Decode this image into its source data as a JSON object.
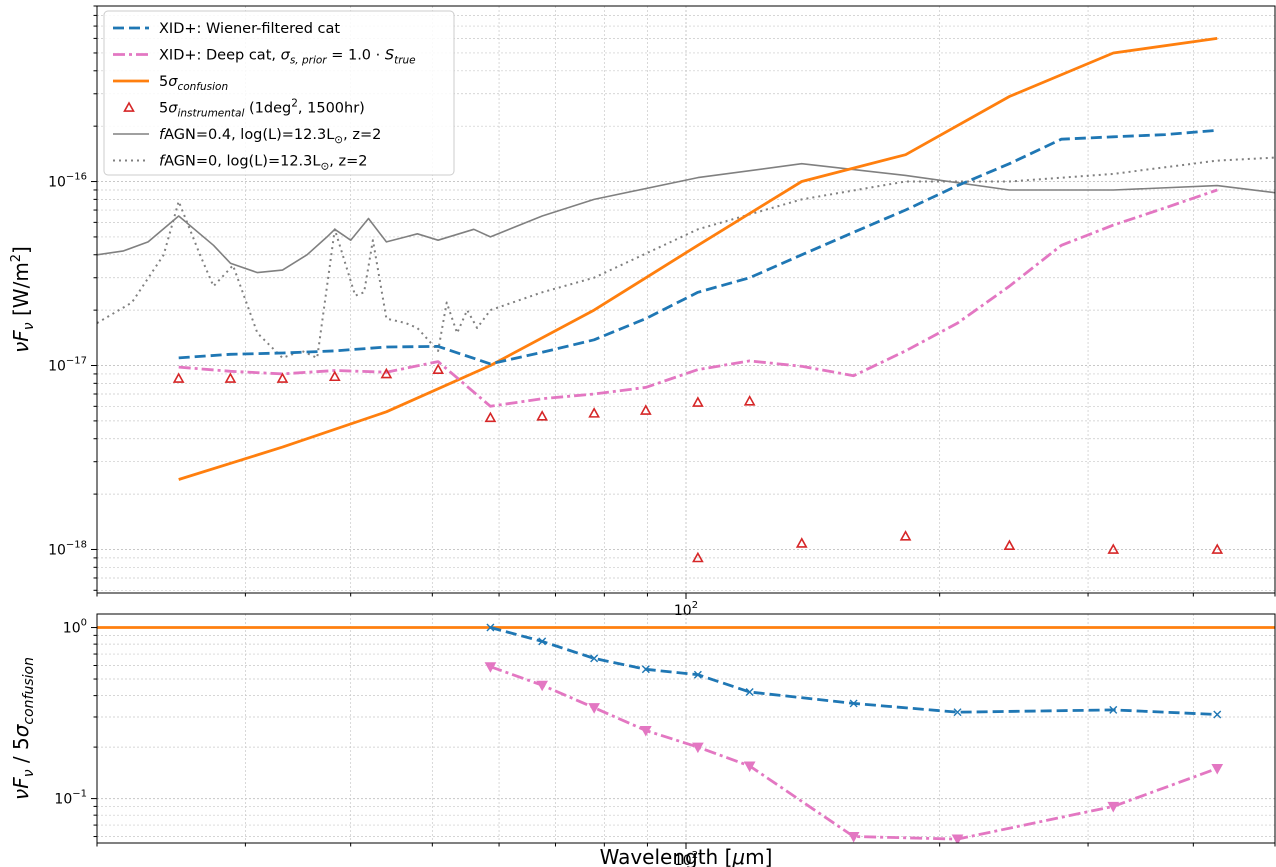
{
  "chart_data": [
    {
      "type": "line",
      "xlabel": "Wavelength [μm]",
      "ylabel": "νF_ν [W/m²]",
      "xscale": "log",
      "yscale": "log",
      "xlim": [
        20,
        500
      ],
      "ylim": [
        5.8e-19,
        9e-16
      ],
      "grid": true,
      "legend_position": "top-left",
      "x_tick_labels": [
        {
          "value": 100,
          "base": "10",
          "exp": "2"
        }
      ],
      "y_tick_labels": [
        {
          "value": 1e-16,
          "base": "10",
          "exp": "−16"
        },
        {
          "value": 1e-17,
          "base": "10",
          "exp": "−17"
        },
        {
          "value": 1e-18,
          "base": "10",
          "exp": "−18"
        }
      ],
      "series": [
        {
          "name": "XID+: Wiener-filtered cat",
          "color": "#1f77b4",
          "style": "dashed",
          "x": [
            25.0,
            28.8,
            33.2,
            38.3,
            44.1,
            50.8,
            58.6,
            67.5,
            77.8,
            89.6,
            103.3,
            119.0,
            137.2,
            158.1,
            182.2,
            210.0,
            242.0,
            278.9,
            321.4,
            370.4,
            427.0
          ],
          "y": [
            1.1e-17,
            1.15e-17,
            1.17e-17,
            1.2e-17,
            1.26e-17,
            1.27e-17,
            1.02e-17,
            1.18e-17,
            1.38e-17,
            1.8e-17,
            2.5e-17,
            3e-17,
            4e-17,
            5.3e-17,
            7e-17,
            9.5e-17,
            1.25e-16,
            1.7e-16,
            1.75e-16,
            1.8e-16,
            1.9e-16
          ]
        },
        {
          "name": "XID+: Deep cat, σ_{s,prior} = 1.0 · S_true",
          "color": "#e377c2",
          "style": "dashdot",
          "x": [
            25.0,
            28.8,
            33.2,
            38.3,
            44.1,
            50.8,
            58.6,
            67.5,
            77.8,
            89.6,
            103.3,
            119.0,
            137.2,
            158.1,
            182.2,
            210.0,
            242.0,
            278.9,
            321.4,
            370.4,
            427.0
          ],
          "y": [
            9.8e-18,
            9.3e-18,
            9e-18,
            9.4e-18,
            9.2e-18,
            1.05e-17,
            6e-18,
            6.6e-18,
            7e-18,
            7.6e-18,
            9.5e-18,
            1.06e-17,
            9.9e-18,
            8.8e-18,
            1.2e-17,
            1.7e-17,
            2.7e-17,
            4.5e-17,
            5.8e-17,
            7.2e-17,
            9e-17
          ]
        },
        {
          "name": "5σ_confusion",
          "color": "#ff7f0e",
          "style": "solid",
          "x": [
            25.0,
            33.2,
            44.1,
            58.6,
            77.8,
            103.3,
            137.2,
            182.2,
            242.0,
            321.4,
            427.0
          ],
          "y": [
            2.4e-18,
            3.6e-18,
            5.6e-18,
            1e-17,
            2e-17,
            4.5e-17,
            1e-16,
            1.4e-16,
            2.9e-16,
            5e-16,
            6e-16
          ]
        },
        {
          "name": "fAGN=0.4, log(L)=12.3L⊙, z=2",
          "color": "#808080",
          "style": "solid",
          "x": [
            20.0,
            21.5,
            23.0,
            25.0,
            27.5,
            28.8,
            31.0,
            33.2,
            35.5,
            37.5,
            38.3,
            40.0,
            42.0,
            44.1,
            46.5,
            48.0,
            50.8,
            56.0,
            58.6,
            67.5,
            77.8,
            103.3,
            137.2,
            182.2,
            242.0,
            321.4,
            427.0,
            500.0
          ],
          "y": [
            4e-17,
            4.2e-17,
            4.7e-17,
            6.5e-17,
            4.5e-17,
            3.6e-17,
            3.2e-17,
            3.3e-17,
            4e-17,
            5e-17,
            5.5e-17,
            4.8e-17,
            6.3e-17,
            4.7e-17,
            5e-17,
            5.2e-17,
            4.8e-17,
            5.5e-17,
            5e-17,
            6.5e-17,
            8e-17,
            1.05e-16,
            1.25e-16,
            1.08e-16,
            9e-17,
            9e-17,
            9.5e-17,
            8.7e-17
          ]
        },
        {
          "name": "fAGN=0, log(L)=12.3L⊙, z=2",
          "color": "#808080",
          "style": "dotted",
          "x": [
            20.0,
            22.0,
            24.0,
            25.0,
            26.5,
            27.5,
            29.0,
            31.0,
            33.2,
            35.0,
            36.5,
            38.3,
            40.5,
            41.5,
            42.5,
            44.1,
            46.5,
            48.0,
            50.8,
            52.0,
            53.5,
            55.0,
            56.5,
            58.6,
            67.5,
            77.8,
            103.3,
            137.2,
            182.2,
            242.0,
            321.4,
            427.0,
            500.0
          ],
          "y": [
            1.7e-17,
            2.2e-17,
            4e-17,
            7.8e-17,
            4e-17,
            2.7e-17,
            3.5e-17,
            1.5e-17,
            1.1e-17,
            1.2e-17,
            1.1e-17,
            5.5e-17,
            2.4e-17,
            2.5e-17,
            4.8e-17,
            1.8e-17,
            1.7e-17,
            1.6e-17,
            1.2e-17,
            2.2e-17,
            1.5e-17,
            2e-17,
            1.6e-17,
            2e-17,
            2.5e-17,
            3e-17,
            5.5e-17,
            8e-17,
            1e-16,
            1e-16,
            1.1e-16,
            1.3e-16,
            1.35e-16
          ]
        }
      ],
      "scatter_series": [
        {
          "name": "5σ_instrumental (1deg², 1500hr)",
          "color": "#d62728",
          "marker": "triangle-open",
          "x": [
            25.0,
            28.8,
            33.2,
            38.3,
            44.1,
            50.8,
            58.6,
            67.5,
            77.8,
            89.6,
            103.3,
            119.0,
            137.2,
            158.1,
            182.2,
            210.0,
            242.0,
            278.9,
            321.4,
            370.4,
            427.0
          ],
          "y": [
            8.5e-18,
            8.5e-18,
            8.5e-18,
            8.7e-18,
            9e-18,
            9.5e-18,
            5.2e-18,
            5.3e-18,
            5.5e-18,
            5.7e-18,
            6.3e-18,
            6.4e-18,
            null,
            null,
            null,
            null,
            null,
            null,
            null,
            null,
            null
          ]
        },
        {
          "name": "5σ_instrumental_long",
          "color": "#d62728",
          "marker": "triangle-open",
          "x": [
            103.3,
            137.2,
            182.2,
            242.0,
            321.4,
            427.0
          ],
          "y": [
            9e-19,
            1.08e-18,
            1.18e-18,
            1.05e-18,
            1e-18,
            1e-18
          ]
        }
      ],
      "legend_entries": [
        {
          "label_parts": [
            {
              "t": "XID+: Wiener-filtered cat",
              "s": "n"
            }
          ],
          "color": "#1f77b4",
          "style": "dashed",
          "marker": "none"
        },
        {
          "label_parts": [
            {
              "t": "XID+: Deep cat, ",
              "s": "n"
            },
            {
              "t": "σ",
              "s": "i"
            },
            {
              "t": "s, prior",
              "s": "sub"
            },
            {
              "t": " = 1.0 · ",
              "s": "n"
            },
            {
              "t": "S",
              "s": "i"
            },
            {
              "t": "true",
              "s": "sub"
            }
          ],
          "color": "#e377c2",
          "style": "dashdot",
          "marker": "none"
        },
        {
          "label_parts": [
            {
              "t": "5",
              "s": "n"
            },
            {
              "t": "σ",
              "s": "i"
            },
            {
              "t": "confusion",
              "s": "sub"
            }
          ],
          "color": "#ff7f0e",
          "style": "solid",
          "marker": "none"
        },
        {
          "label_parts": [
            {
              "t": "5",
              "s": "n"
            },
            {
              "t": "σ",
              "s": "i"
            },
            {
              "t": "instrumental",
              "s": "sub"
            },
            {
              "t": " (1deg",
              "s": "n"
            },
            {
              "t": "2",
              "s": "sup"
            },
            {
              "t": ", 1500hr)",
              "s": "n"
            }
          ],
          "color": "#d62728",
          "style": "none",
          "marker": "triangle-open"
        },
        {
          "label_parts": [
            {
              "t": "f",
              "s": "i"
            },
            {
              "t": "AGN=0.4, log(L)=12.3L",
              "s": "n"
            },
            {
              "t": "⊙",
              "s": "sub"
            },
            {
              "t": ", z=2",
              "s": "n"
            }
          ],
          "color": "#808080",
          "style": "solid",
          "marker": "none"
        },
        {
          "label_parts": [
            {
              "t": "f",
              "s": "i"
            },
            {
              "t": "AGN=0, log(L)=12.3L",
              "s": "n"
            },
            {
              "t": "⊙",
              "s": "sub"
            },
            {
              "t": ", z=2",
              "s": "n"
            }
          ],
          "color": "#808080",
          "style": "dotted",
          "marker": "none"
        }
      ]
    },
    {
      "type": "line",
      "xlabel": "Wavelength [μm]",
      "ylabel": "νF_ν / 5σ_confusion",
      "xscale": "log",
      "yscale": "log",
      "xlim": [
        20,
        500
      ],
      "ylim": [
        0.055,
        1.2
      ],
      "grid": true,
      "x_tick_labels": [
        {
          "value": 100,
          "base": "10",
          "exp": "2"
        }
      ],
      "y_tick_labels": [
        {
          "value": 1.0,
          "base": "10",
          "exp": "0"
        },
        {
          "value": 0.1,
          "base": "10",
          "exp": "−1"
        }
      ],
      "series": [
        {
          "name": "",
          "color": "#ff7f0e",
          "style": "solid",
          "marker": "none",
          "x": [
            20,
            500
          ],
          "y": [
            1.0,
            1.0
          ]
        },
        {
          "name": "",
          "color": "#1f77b4",
          "style": "dashed",
          "marker": "x",
          "x": [
            58.6,
            67.5,
            77.8,
            89.6,
            103.3,
            119.0,
            158.1,
            210.0,
            321.4,
            427.0
          ],
          "y": [
            1.0,
            0.83,
            0.66,
            0.57,
            0.53,
            0.42,
            0.36,
            0.32,
            0.33,
            0.31
          ]
        },
        {
          "name": "",
          "color": "#e377c2",
          "style": "dashdot",
          "marker": "triangle-down",
          "x": [
            58.6,
            67.5,
            77.8,
            89.6,
            103.3,
            119.0,
            158.1,
            210.0,
            321.4,
            427.0
          ],
          "y": [
            0.59,
            0.46,
            0.34,
            0.25,
            0.2,
            0.155,
            0.06,
            0.058,
            0.09,
            0.15
          ]
        }
      ]
    }
  ]
}
